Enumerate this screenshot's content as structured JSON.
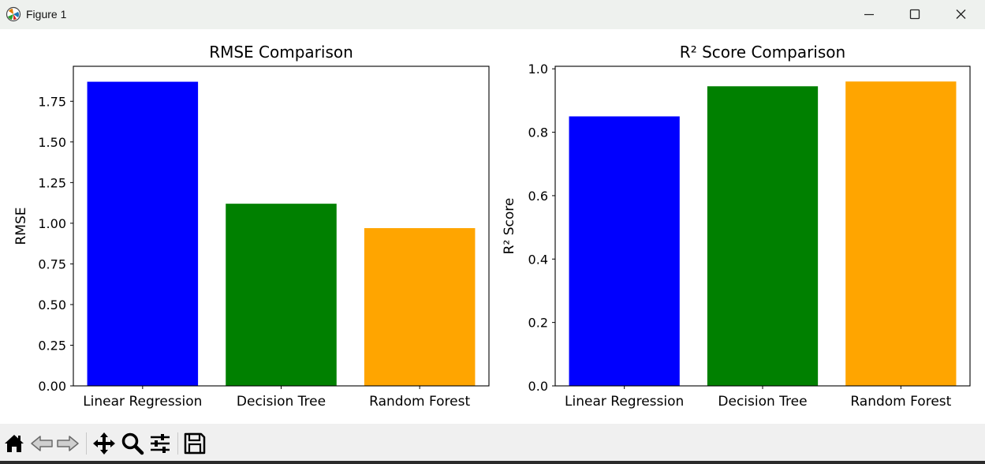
{
  "window": {
    "title": "Figure 1"
  },
  "colors": {
    "blue": "#0000ff",
    "green": "#008000",
    "orange": "#ffa500"
  },
  "toolbar": {
    "items": [
      "home-icon",
      "back-arrow-icon",
      "forward-arrow-icon",
      "pan-icon",
      "zoom-icon",
      "configure-subplots-icon",
      "save-icon"
    ]
  },
  "chart_data": [
    {
      "type": "bar",
      "title": "RMSE Comparison",
      "xlabel": "",
      "ylabel": "RMSE",
      "categories": [
        "Linear Regression",
        "Decision Tree",
        "Random Forest"
      ],
      "values": [
        1.87,
        1.12,
        0.97
      ],
      "colors": [
        "#0000ff",
        "#008000",
        "#ffa500"
      ],
      "ylim": [
        0,
        1.965
      ],
      "yticks": [
        0.0,
        0.25,
        0.5,
        0.75,
        1.0,
        1.25,
        1.5,
        1.75
      ],
      "ytick_labels": [
        "0.00",
        "0.25",
        "0.50",
        "0.75",
        "1.00",
        "1.25",
        "1.50",
        "1.75"
      ],
      "grid": false,
      "legend": "none"
    },
    {
      "type": "bar",
      "title": "R² Score Comparison",
      "xlabel": "",
      "ylabel": "R² Score",
      "categories": [
        "Linear Regression",
        "Decision Tree",
        "Random Forest"
      ],
      "values": [
        0.85,
        0.945,
        0.96
      ],
      "colors": [
        "#0000ff",
        "#008000",
        "#ffa500"
      ],
      "ylim": [
        0,
        1.008
      ],
      "yticks": [
        0.0,
        0.2,
        0.4,
        0.6,
        0.8,
        1.0
      ],
      "ytick_labels": [
        "0.0",
        "0.2",
        "0.4",
        "0.6",
        "0.8",
        "1.0"
      ],
      "grid": false,
      "legend": "none"
    }
  ]
}
